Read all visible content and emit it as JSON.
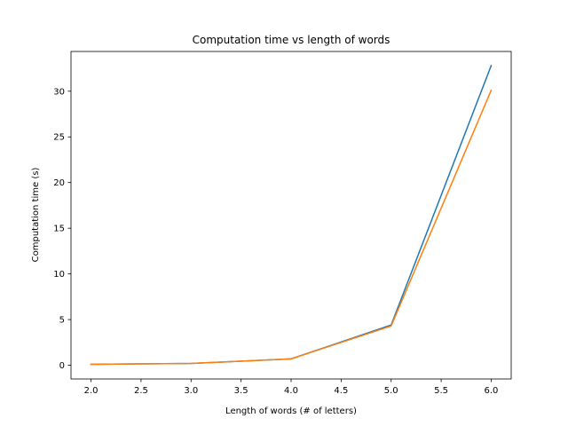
{
  "chart_data": {
    "type": "line",
    "title": "Computation time vs length of words",
    "xlabel": "Length of words (# of letters)",
    "ylabel": "Computation time (s)",
    "xlim": [
      1.8,
      6.2
    ],
    "ylim": [
      -1.5,
      34.35
    ],
    "xticks": [
      2.0,
      2.5,
      3.0,
      3.5,
      4.0,
      4.5,
      5.0,
      5.5,
      6.0
    ],
    "xtick_labels": [
      "2.0",
      "2.5",
      "3.0",
      "3.5",
      "4.0",
      "4.5",
      "5.0",
      "5.5",
      "6.0"
    ],
    "yticks": [
      0,
      5,
      10,
      15,
      20,
      25,
      30
    ],
    "ytick_labels": [
      "0",
      "5",
      "10",
      "15",
      "20",
      "25",
      "30"
    ],
    "grid": false,
    "x": [
      2,
      3,
      4,
      5,
      6
    ],
    "series": [
      {
        "values": [
          0.1,
          0.2,
          0.7,
          4.4,
          32.8
        ],
        "color": "#1f77b4"
      },
      {
        "values": [
          0.1,
          0.2,
          0.7,
          4.3,
          30.1
        ],
        "color": "#ff7f0e"
      }
    ]
  }
}
